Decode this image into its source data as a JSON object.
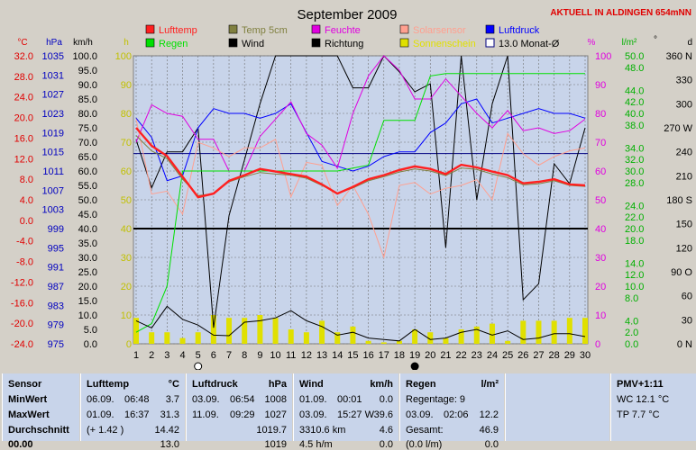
{
  "chart_data": {
    "type": "line",
    "title": "September 2009",
    "station_label": "AKTUELL IN ALDINGEN 654mNN",
    "days": [
      1,
      2,
      3,
      4,
      5,
      6,
      7,
      8,
      9,
      10,
      11,
      12,
      13,
      14,
      15,
      16,
      17,
      18,
      19,
      20,
      21,
      22,
      23,
      24,
      25,
      26,
      27,
      28,
      29,
      30
    ],
    "axes": {
      "temp": {
        "unit": "°C",
        "ticks": [
          "32.0",
          "28.0",
          "24.0",
          "20.0",
          "16.0",
          "12.0",
          "8.0",
          "4.0",
          "0.0",
          "-4.0",
          "-8.0",
          "-12.0",
          "-16.0",
          "-20.0",
          "-24.0"
        ],
        "range": [
          -24,
          32
        ]
      },
      "pressure": {
        "unit": "hPa",
        "ticks": [
          "1035",
          "1031",
          "1027",
          "1023",
          "1019",
          "1015",
          "1011",
          "1007",
          "1003",
          "999",
          "995",
          "991",
          "987",
          "983",
          "979",
          "975"
        ],
        "range": [
          975,
          1035
        ]
      },
      "wind_speed": {
        "unit": "km/h",
        "ticks": [
          "100.0",
          "95.0",
          "90.0",
          "85.0",
          "80.0",
          "75.0",
          "70.0",
          "65.0",
          "60.0",
          "55.0",
          "50.0",
          "45.0",
          "40.0",
          "35.0",
          "30.0",
          "25.0",
          "20.0",
          "15.0",
          "10.0",
          "5.0",
          "0.0"
        ],
        "range": [
          0,
          100
        ]
      },
      "sunshine": {
        "unit": "h",
        "ticks": [
          "100",
          "90",
          "80",
          "70",
          "60",
          "50",
          "40",
          "30",
          "20",
          "10",
          "0"
        ],
        "range": [
          0,
          100
        ]
      },
      "humidity": {
        "unit": "%",
        "ticks": [
          "100",
          "90",
          "80",
          "70",
          "60",
          "50",
          "40",
          "30",
          "20",
          "10",
          "0"
        ],
        "range": [
          0,
          100
        ]
      },
      "rain": {
        "unit": "l/m²",
        "ticks": [
          "50.0",
          "48.0",
          "44.0",
          "42.0",
          "40.0",
          "38.0",
          "34.0",
          "32.0",
          "30.0",
          "28.0",
          "24.0",
          "22.0",
          "20.0",
          "18.0",
          "14.0",
          "12.0",
          "10.0",
          "8.0",
          "4.0",
          "2.0",
          "0.0"
        ],
        "range": [
          0,
          50
        ]
      },
      "direction": {
        "unit": "°",
        "unit2": "d",
        "ticks": [
          "360 N",
          "330",
          "300",
          "270 W",
          "240",
          "210",
          "180 S",
          "150",
          "120",
          "90 O",
          "60",
          "30",
          "0  N"
        ],
        "range": [
          0,
          360
        ]
      }
    },
    "legend": [
      {
        "name": "Lufttemp",
        "color": "#ff2020"
      },
      {
        "name": "Temp 5cm",
        "color": "#808040"
      },
      {
        "name": "Feuchte",
        "color": "#e000e0"
      },
      {
        "name": "Solarsensor",
        "color": "#ffa090"
      },
      {
        "name": "Luftdruck",
        "color": "#0000ff"
      },
      {
        "name": "Regen",
        "color": "#00e000"
      },
      {
        "name": "Wind",
        "color": "#000000"
      },
      {
        "name": "Richtung",
        "color": "#000000"
      },
      {
        "name": "Sonnenschein",
        "color": "#e0e000"
      },
      {
        "name": "13.0 Monat-Ø",
        "color": "#000080"
      }
    ],
    "series": [
      {
        "name": "Lufttemp",
        "axis": "temp",
        "values": [
          18.0,
          14.5,
          12.5,
          8.5,
          4.5,
          5.2,
          7.7,
          8.8,
          10.0,
          9.5,
          9.0,
          8.5,
          7.0,
          5.2,
          6.5,
          8.0,
          8.8,
          9.8,
          10.5,
          10.0,
          9.0,
          10.8,
          10.3,
          9.5,
          8.8,
          7.2,
          7.5,
          8.0,
          7.0,
          6.8
        ],
        "color": "#ff2020"
      },
      {
        "name": "Temp 5cm",
        "axis": "temp",
        "values": [
          16.5,
          13.5,
          12.0,
          8.0,
          4.8,
          5.2,
          7.5,
          8.5,
          9.3,
          9.0,
          8.8,
          8.2,
          6.8,
          5.3,
          6.3,
          7.7,
          8.5,
          9.4,
          10.0,
          9.6,
          8.7,
          10.2,
          9.9,
          9.0,
          8.3,
          6.9,
          7.1,
          7.7,
          6.8,
          6.6
        ],
        "color": "#808040"
      },
      {
        "name": "Feuchte",
        "axis": "humidity",
        "values": [
          70,
          83,
          80,
          79,
          71,
          71,
          60,
          60,
          72,
          78,
          84,
          73,
          69,
          61,
          80,
          93,
          100,
          95,
          85,
          85,
          92,
          86,
          80,
          75,
          81,
          74,
          75,
          73,
          74,
          78
        ],
        "color": "#e000e0"
      },
      {
        "name": "Solarsensor",
        "axis": "humidity",
        "values": [
          78,
          52,
          53,
          45,
          70,
          68,
          65,
          68,
          68,
          71,
          51,
          63,
          62,
          48,
          55,
          45,
          30,
          55,
          56,
          52,
          54,
          55,
          57,
          50,
          73,
          66,
          62,
          65,
          67,
          68
        ],
        "color": "#ffa090"
      },
      {
        "name": "Luftdruck",
        "axis": "pressure",
        "values": [
          1022,
          1018,
          1009,
          1010,
          1020,
          1024,
          1023,
          1023,
          1022,
          1023,
          1025,
          1019,
          1013,
          1012,
          1011,
          1012,
          1014,
          1015,
          1015,
          1019,
          1021,
          1025,
          1026,
          1021,
          1022,
          1023,
          1024,
          1023,
          1023,
          1022
        ],
        "color": "#0000ff"
      },
      {
        "name": "Regen",
        "axis": "rain",
        "values": [
          2.0,
          3.5,
          10.0,
          30.0,
          30.0,
          30.0,
          30.0,
          30.0,
          30.0,
          30.0,
          30.0,
          30.0,
          30.0,
          30.0,
          30.5,
          31.0,
          38.8,
          38.8,
          38.8,
          46.5,
          46.9,
          46.9,
          46.9,
          46.9,
          46.9,
          46.9,
          46.9,
          46.9,
          46.9,
          46.9
        ],
        "color": "#00e000"
      },
      {
        "name": "Wind",
        "axis": "wind_speed",
        "values": [
          8.0,
          5.5,
          13.0,
          8.5,
          6.5,
          3.0,
          2.8,
          7.5,
          8.0,
          9.0,
          11.5,
          8.0,
          6.0,
          3.0,
          4.0,
          2.0,
          1.5,
          1.0,
          5.0,
          1.5,
          2.0,
          4.0,
          5.0,
          3.0,
          4.5,
          1.5,
          2.0,
          3.5,
          3.5,
          2.5
        ],
        "color": "#000000"
      },
      {
        "name": "Richtung",
        "axis": "direction",
        "values": [
          255,
          195,
          240,
          240,
          270,
          20,
          160,
          230,
          300,
          360,
          360,
          360,
          360,
          360,
          320,
          320,
          360,
          340,
          315,
          325,
          120,
          360,
          180,
          300,
          360,
          55,
          75,
          225,
          200,
          270
        ],
        "color": "#000000"
      },
      {
        "name": "Sonnenschein",
        "axis": "sunshine",
        "values": [
          9,
          4,
          4,
          2,
          4,
          10,
          9,
          9,
          10,
          9,
          5,
          4,
          8,
          4,
          6,
          1,
          0.5,
          1,
          5,
          4,
          2,
          5,
          6,
          7,
          1,
          8,
          8,
          8,
          9,
          9
        ],
        "color": "#e0e000"
      }
    ],
    "monthly_mean_temp": 13.0,
    "reference_line": 40,
    "moon_markers": [
      {
        "day": 5,
        "phase": "empty"
      },
      {
        "day": 19,
        "phase": "full"
      }
    ]
  },
  "panel": {
    "sensor": {
      "label": "Sensor",
      "min": "MinWert",
      "max": "MaxWert",
      "avg": "Durchschnitt",
      "partial": "00.00"
    },
    "temp": {
      "label": "Lufttemp",
      "unit": "°C",
      "min_date": "06.09.",
      "min_time": "06:48",
      "min_val": "3.7",
      "max_date": "01.09.",
      "max_time": "16:37",
      "max_val": "31.3",
      "avg_note": "(+ 1.42 )",
      "avg_val": "14.42",
      "partial": "13.0"
    },
    "pressure": {
      "label": "Luftdruck",
      "unit": "hPa",
      "min_date": "03.09.",
      "min_time": "06:54",
      "min_val": "1008",
      "max_date": "11.09.",
      "max_time": "09:29",
      "max_val": "1027",
      "avg_val": "1019.7",
      "partial": "1019"
    },
    "wind": {
      "label": "Wind",
      "unit": "km/h",
      "min_date": "01.09.",
      "min_time": "00:01",
      "min_val": "0.0",
      "max_date": "03.09.",
      "max_time": "15:27 W",
      "max_val": "39.6",
      "km_val": "3310.6 km",
      "km_avg": "4.6",
      "partial_left": "4.5 h/m",
      "partial_right": "0.0"
    },
    "rain": {
      "label": "Regen",
      "unit": "l/m²",
      "days_label": "Regentage: 9",
      "max_date": "03.09.",
      "max_time": "02:06",
      "max_val": "12.2",
      "total_label": "Gesamt:",
      "total_val": "46.9",
      "partial_left": "(0.0 l/m)",
      "partial_right": "0.0"
    },
    "pmv": {
      "label": "PMV+1:11",
      "wc": "WC 12.1 °C",
      "tp": "TP 7.7 °C"
    }
  }
}
